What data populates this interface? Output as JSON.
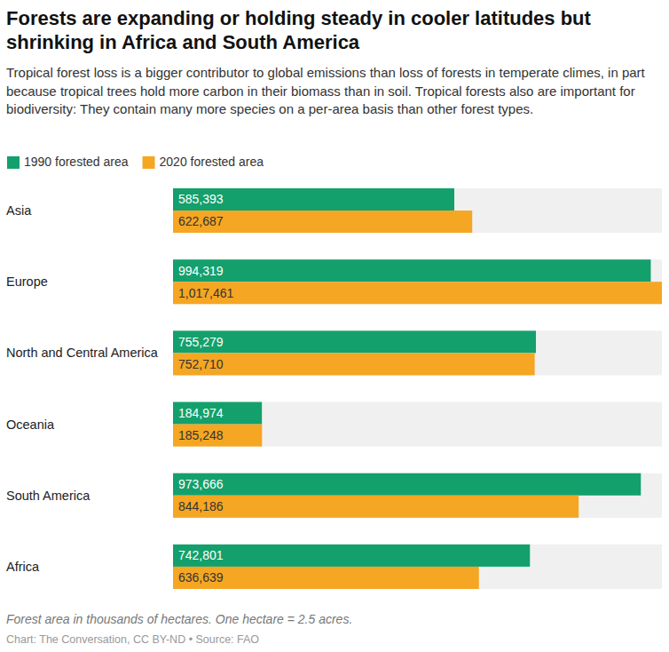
{
  "chart_data": {
    "type": "bar",
    "orientation": "horizontal",
    "title": "Forests are expanding or holding steady in cooler latitudes but shrinking in Africa and South America",
    "subtitle": "Tropical forest loss is a bigger contributor to global emissions than loss of forests in temperate climes, in part because tropical trees hold more carbon in their biomass than in soil. Tropical forests also are important for biodiversity: They contain many more species on a per-area basis than other forest types.",
    "categories": [
      "Asia",
      "Europe",
      "North and Central America",
      "Oceania",
      "South America",
      "Africa"
    ],
    "series": [
      {
        "name": "1990 forested area",
        "color": "#14a06c",
        "values": [
          585393,
          994319,
          755279,
          184974,
          973666,
          742801
        ],
        "value_labels": [
          "585,393",
          "994,319",
          "755,279",
          "184,974",
          "973,666",
          "742,801"
        ]
      },
      {
        "name": "2020 forested area",
        "color": "#f5a623",
        "values": [
          622687,
          1017461,
          752710,
          185248,
          844186,
          636639
        ],
        "value_labels": [
          "622,687",
          "1,017,461",
          "752,710",
          "185,248",
          "844,186",
          "636,639"
        ]
      }
    ],
    "xlim": [
      0,
      1017461
    ],
    "data_labels": true,
    "tick_labels": false,
    "legend": "top-left",
    "caption": "Forest area in thousands of hectares. One hectare = 2.5 acres.",
    "credit": "Chart: The Conversation, CC BY-ND • Source: FAO"
  }
}
